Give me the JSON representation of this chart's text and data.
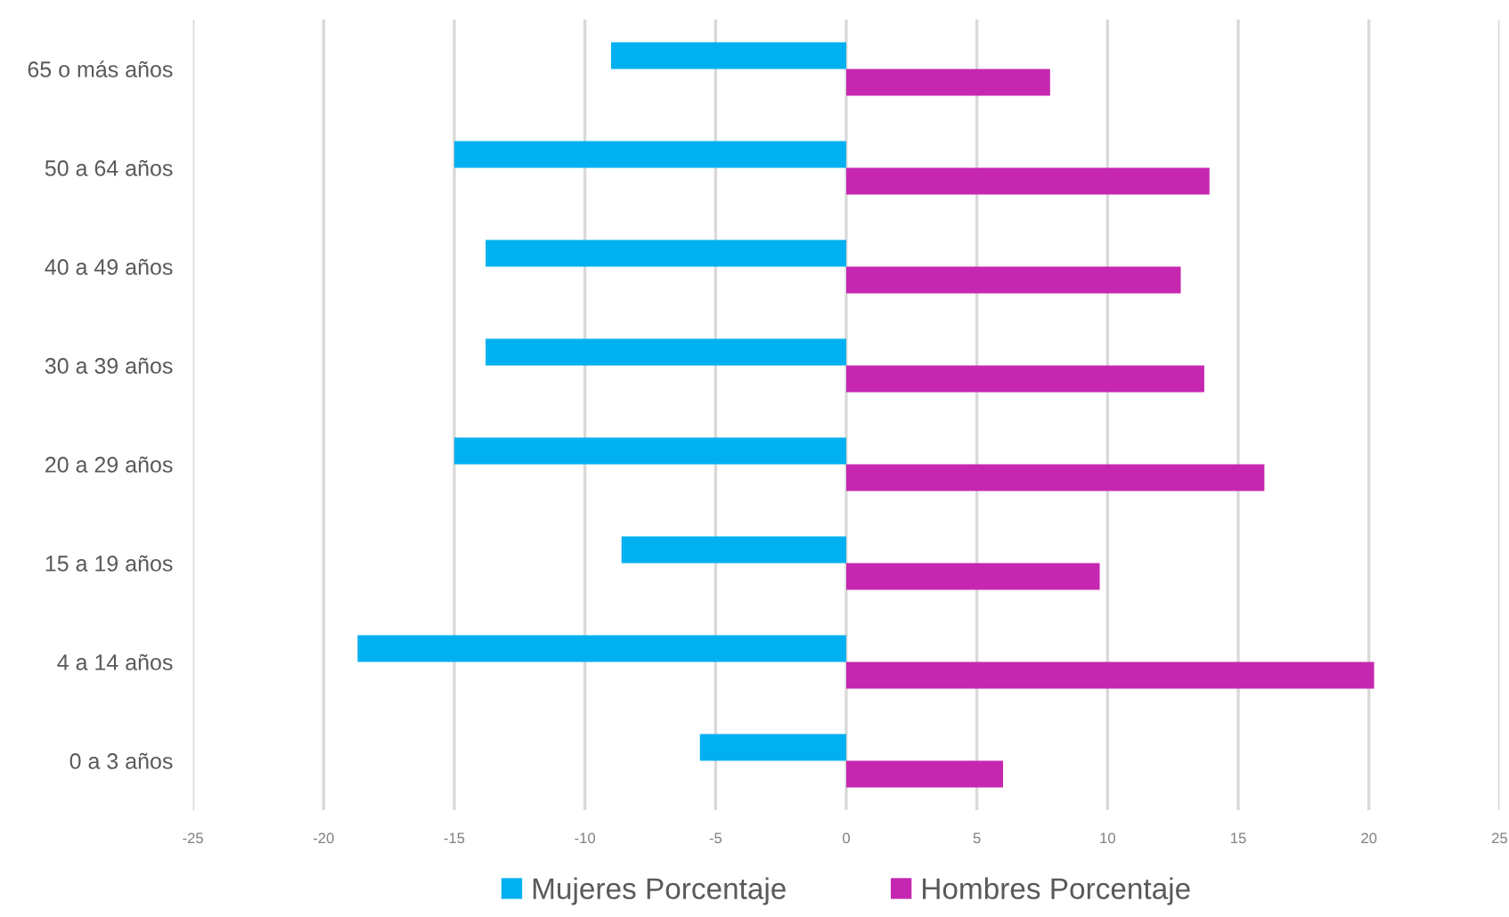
{
  "chart_data": {
    "type": "bar",
    "orientation": "horizontal",
    "categories": [
      "65 o más años",
      "50 a 64 años",
      "40 a 49 años",
      "30 a 39 años",
      "20 a 29 años",
      "15 a 19 años",
      "4 a 14 años",
      "0 a 3 años"
    ],
    "series": [
      {
        "name": "Mujeres Porcentaje",
        "color": "#00b0f0",
        "values": [
          -9.0,
          -15.0,
          -13.8,
          -13.8,
          -15.0,
          -8.6,
          -18.7,
          -5.6
        ]
      },
      {
        "name": "Hombres Porcentaje",
        "color": "#c527b0",
        "values": [
          7.8,
          13.9,
          12.8,
          13.7,
          16.0,
          9.7,
          20.2,
          6.0
        ]
      }
    ],
    "xlim": [
      -25,
      25
    ],
    "xticks": [
      -25,
      -20,
      -15,
      -10,
      -5,
      0,
      5,
      10,
      15,
      20,
      25
    ],
    "grid": "x",
    "legend": "bottom"
  }
}
